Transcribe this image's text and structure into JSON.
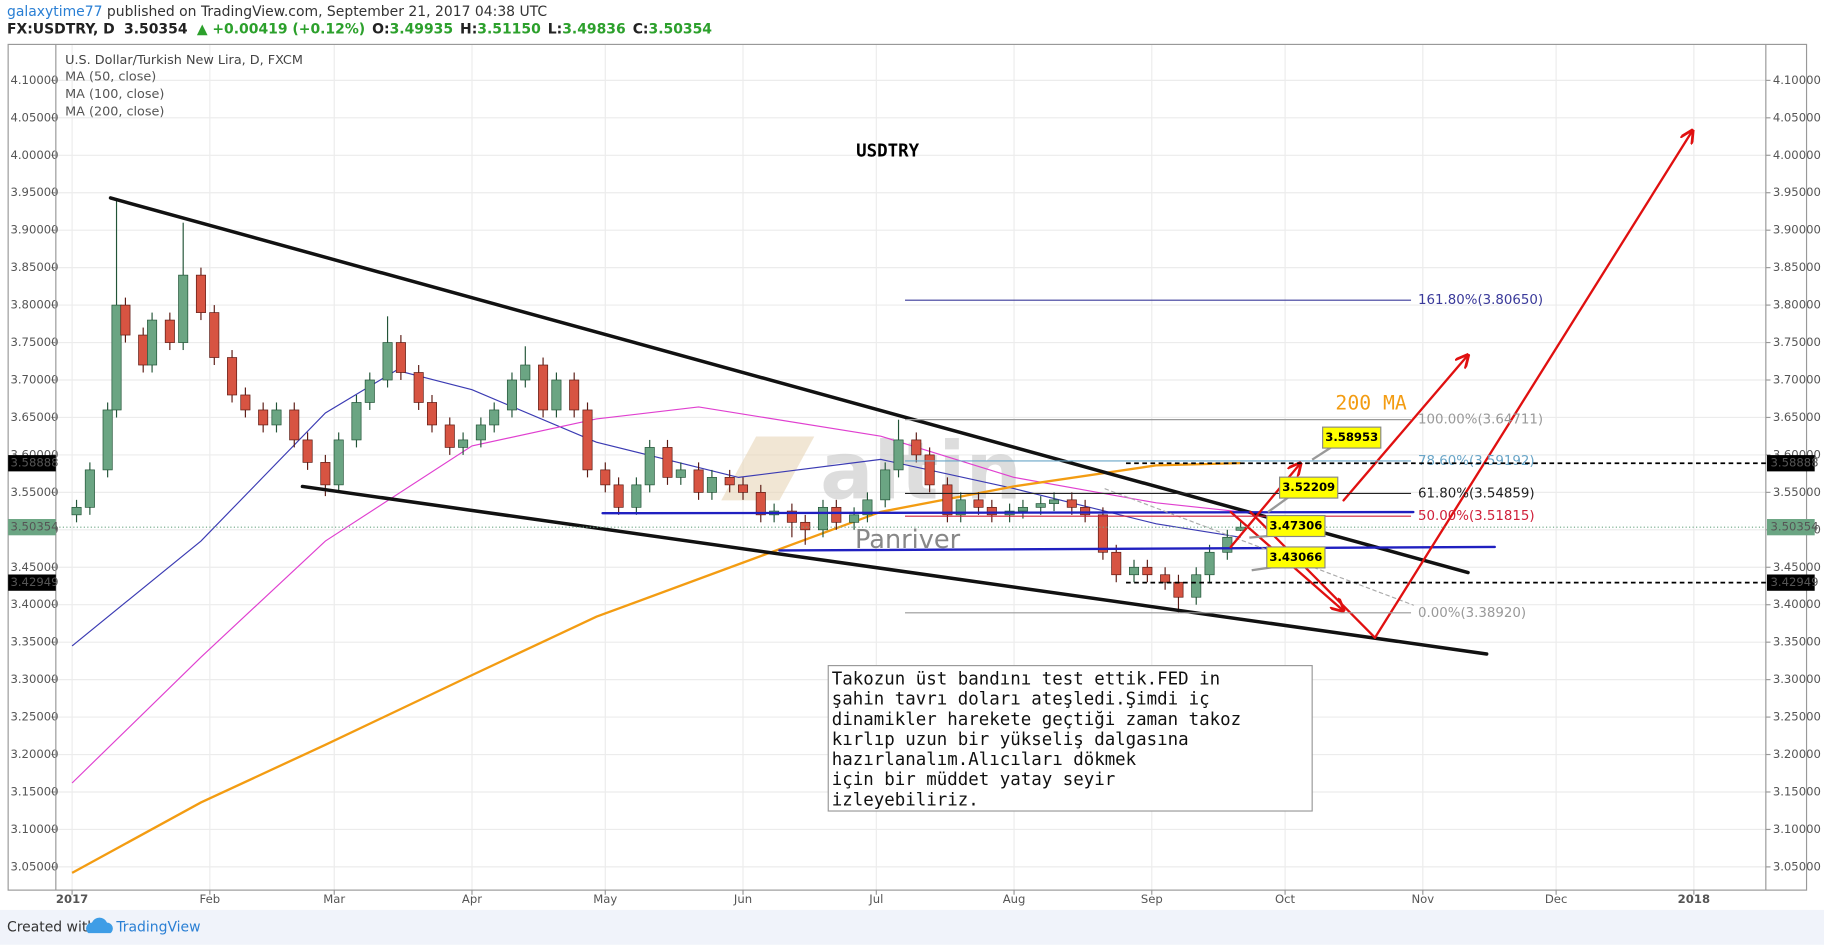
{
  "header": {
    "user": "galaxytime77",
    "published": " published on TradingView.com, September 21, 2017 04:38 UTC",
    "symbol": "FX:USDTRY, D",
    "price": "3.50354",
    "change": "▲ +0.00419 (+0.12%)",
    "ohlc": [
      {
        "label": "O:",
        "value": "3.49935"
      },
      {
        "label": "H:",
        "value": "3.51150"
      },
      {
        "label": "L:",
        "value": "3.49836"
      },
      {
        "label": "C:",
        "value": "3.50354"
      }
    ]
  },
  "chart_data": {
    "type": "candlestick",
    "title": "U.S. Dollar/Turkish New Lira, D, FXCM",
    "chart_label": "USDTRY",
    "ma_label": "200 MA",
    "up_color": "#6ba583",
    "down_color": "#d75442",
    "xlim": [
      -3.66,
      381.2
    ],
    "ylim": [
      3.019,
      4.148
    ],
    "grid": true,
    "xticks": [
      {
        "value": 0,
        "label": "2017"
      },
      {
        "value": 31,
        "label": "Feb"
      },
      {
        "value": 59,
        "label": "Mar"
      },
      {
        "value": 90,
        "label": "Apr"
      },
      {
        "value": 120,
        "label": "May"
      },
      {
        "value": 151,
        "label": "Jun"
      },
      {
        "value": 181,
        "label": "Jul"
      },
      {
        "value": 212,
        "label": "Aug"
      },
      {
        "value": 243,
        "label": "Sep"
      },
      {
        "value": 273,
        "label": "Oct"
      },
      {
        "value": 304,
        "label": "Nov"
      },
      {
        "value": 334,
        "label": "Dec"
      },
      {
        "value": 365,
        "label": "2018"
      }
    ],
    "yticks": [
      {
        "value": 3.05,
        "label": "3.05000"
      },
      {
        "value": 3.1,
        "label": "3.10000"
      },
      {
        "value": 3.15,
        "label": "3.15000"
      },
      {
        "value": 3.2,
        "label": "3.20000"
      },
      {
        "value": 3.25,
        "label": "3.25000"
      },
      {
        "value": 3.3,
        "label": "3.30000"
      },
      {
        "value": 3.35,
        "label": "3.35000"
      },
      {
        "value": 3.4,
        "label": "3.40000"
      },
      {
        "value": 3.45,
        "label": "3.45000"
      },
      {
        "value": 3.5,
        "label": "3.50000"
      },
      {
        "value": 3.55,
        "label": "3.55000"
      },
      {
        "value": 3.6,
        "label": "3.60000"
      },
      {
        "value": 3.65,
        "label": "3.65000"
      },
      {
        "value": 3.7,
        "label": "3.70000"
      },
      {
        "value": 3.75,
        "label": "3.75000"
      },
      {
        "value": 3.8,
        "label": "3.80000"
      },
      {
        "value": 3.85,
        "label": "3.85000"
      },
      {
        "value": 3.9,
        "label": "3.90000"
      },
      {
        "value": 3.95,
        "label": "3.95000"
      },
      {
        "value": 4.0,
        "label": "4.00000"
      },
      {
        "value": 4.05,
        "label": "4.05000"
      },
      {
        "value": 4.1,
        "label": "4.10000"
      }
    ],
    "x": [
      1,
      4,
      8,
      10,
      12,
      16,
      18,
      22,
      25,
      29,
      32,
      36,
      39,
      43,
      46,
      50,
      53,
      57,
      60,
      64,
      67,
      71,
      74,
      78,
      81,
      85,
      88,
      92,
      95,
      99,
      102,
      106,
      109,
      113,
      116,
      120,
      123,
      127,
      130,
      134,
      137,
      141,
      144,
      148,
      151,
      155,
      158,
      162,
      165,
      169,
      172,
      176,
      179,
      183,
      186,
      190,
      193,
      197,
      200,
      204,
      207,
      211,
      214,
      218,
      221,
      225,
      228,
      232,
      235,
      239,
      242,
      246,
      249,
      253,
      256,
      260,
      263
    ],
    "open": [
      3.52,
      3.53,
      3.58,
      3.66,
      3.8,
      3.76,
      3.72,
      3.78,
      3.75,
      3.84,
      3.79,
      3.73,
      3.68,
      3.66,
      3.64,
      3.66,
      3.62,
      3.59,
      3.56,
      3.62,
      3.67,
      3.7,
      3.75,
      3.71,
      3.67,
      3.64,
      3.61,
      3.62,
      3.64,
      3.66,
      3.7,
      3.72,
      3.66,
      3.7,
      3.66,
      3.58,
      3.56,
      3.53,
      3.56,
      3.61,
      3.57,
      3.58,
      3.55,
      3.57,
      3.56,
      3.55,
      3.52,
      3.525,
      3.51,
      3.5,
      3.53,
      3.51,
      3.52,
      3.54,
      3.58,
      3.62,
      3.6,
      3.56,
      3.52,
      3.54,
      3.53,
      3.52,
      3.525,
      3.53,
      3.535,
      3.54,
      3.53,
      3.52,
      3.47,
      3.44,
      3.45,
      3.44,
      3.43,
      3.41,
      3.44,
      3.47,
      3.49935
    ],
    "high": [
      3.54,
      3.59,
      3.67,
      3.94,
      3.81,
      3.77,
      3.79,
      3.79,
      3.91,
      3.85,
      3.8,
      3.74,
      3.69,
      3.67,
      3.67,
      3.67,
      3.63,
      3.6,
      3.63,
      3.68,
      3.71,
      3.785,
      3.76,
      3.72,
      3.68,
      3.65,
      3.63,
      3.65,
      3.67,
      3.71,
      3.745,
      3.73,
      3.71,
      3.71,
      3.67,
      3.59,
      3.57,
      3.57,
      3.62,
      3.62,
      3.59,
      3.59,
      3.58,
      3.58,
      3.57,
      3.56,
      3.535,
      3.535,
      3.52,
      3.54,
      3.54,
      3.53,
      3.55,
      3.59,
      3.647,
      3.63,
      3.61,
      3.57,
      3.55,
      3.55,
      3.54,
      3.535,
      3.54,
      3.545,
      3.55,
      3.55,
      3.54,
      3.53,
      3.48,
      3.46,
      3.46,
      3.45,
      3.44,
      3.45,
      3.48,
      3.5,
      3.5115
    ],
    "low": [
      3.51,
      3.52,
      3.57,
      3.65,
      3.75,
      3.71,
      3.71,
      3.74,
      3.74,
      3.78,
      3.72,
      3.67,
      3.65,
      3.63,
      3.63,
      3.61,
      3.58,
      3.545,
      3.55,
      3.61,
      3.66,
      3.69,
      3.7,
      3.66,
      3.63,
      3.6,
      3.6,
      3.61,
      3.63,
      3.65,
      3.69,
      3.65,
      3.65,
      3.65,
      3.57,
      3.55,
      3.52,
      3.52,
      3.55,
      3.56,
      3.56,
      3.54,
      3.54,
      3.55,
      3.54,
      3.51,
      3.51,
      3.49,
      3.48,
      3.49,
      3.5,
      3.5,
      3.51,
      3.53,
      3.57,
      3.59,
      3.55,
      3.51,
      3.51,
      3.52,
      3.51,
      3.51,
      3.515,
      3.52,
      3.525,
      3.52,
      3.51,
      3.46,
      3.43,
      3.43,
      3.43,
      3.42,
      3.389,
      3.4,
      3.43,
      3.46,
      3.49836
    ],
    "close": [
      3.53,
      3.58,
      3.66,
      3.8,
      3.76,
      3.72,
      3.78,
      3.75,
      3.84,
      3.79,
      3.73,
      3.68,
      3.66,
      3.64,
      3.66,
      3.62,
      3.59,
      3.56,
      3.62,
      3.67,
      3.7,
      3.75,
      3.71,
      3.67,
      3.64,
      3.61,
      3.62,
      3.64,
      3.66,
      3.7,
      3.72,
      3.66,
      3.7,
      3.66,
      3.58,
      3.56,
      3.53,
      3.56,
      3.61,
      3.57,
      3.58,
      3.55,
      3.57,
      3.56,
      3.55,
      3.52,
      3.525,
      3.51,
      3.5,
      3.53,
      3.51,
      3.52,
      3.54,
      3.58,
      3.62,
      3.6,
      3.56,
      3.52,
      3.54,
      3.53,
      3.52,
      3.525,
      3.53,
      3.535,
      3.54,
      3.53,
      3.52,
      3.47,
      3.44,
      3.45,
      3.44,
      3.43,
      3.41,
      3.44,
      3.47,
      3.49,
      3.50354
    ],
    "ma_series": [
      {
        "name": "MA (50, close)",
        "color": "#3b3bb3",
        "x": [
          0,
          29,
          57,
          73,
          90,
          118,
          150,
          182,
          212,
          244,
          263
        ],
        "values": [
          3.345,
          3.485,
          3.656,
          3.713,
          3.687,
          3.617,
          3.57,
          3.594,
          3.555,
          3.508,
          3.49
        ]
      },
      {
        "name": "MA (100, close)",
        "color": "#e040d0",
        "x": [
          0,
          29,
          57,
          90,
          118,
          141,
          182,
          212,
          244,
          263
        ],
        "values": [
          3.162,
          3.33,
          3.485,
          3.612,
          3.648,
          3.664,
          3.625,
          3.57,
          3.536,
          3.524
        ]
      },
      {
        "name": "MA (200, close)",
        "color": "#f39c12",
        "x": [
          0,
          29,
          57,
          90,
          118,
          150,
          182,
          212,
          244,
          263
        ],
        "values": [
          3.042,
          3.136,
          3.213,
          3.306,
          3.384,
          3.454,
          3.524,
          3.558,
          3.586,
          3.589
        ]
      }
    ],
    "fib_levels": [
      {
        "label": "161.80%(3.80650)",
        "value": 3.8065,
        "color": "#3a3a9a"
      },
      {
        "label": "100.00%(3.64711)",
        "value": 3.64711,
        "color": "#999999"
      },
      {
        "label": "78.60%(3.59192)",
        "value": 3.59192,
        "color": "#6aa6c8"
      },
      {
        "label": "61.80%(3.54859)",
        "value": 3.54859,
        "color": "#222222"
      },
      {
        "label": "50.00%(3.51815)",
        "value": 3.51815,
        "color": "#d0203a"
      },
      {
        "label": "0.00%(3.38920)",
        "value": 3.3892,
        "color": "#999999"
      }
    ],
    "price_lines": [
      3.58888,
      3.42949
    ],
    "callouts": [
      3.58953,
      3.52209,
      3.47306,
      3.43066
    ],
    "note": [
      "Takozun üst bandını test ettik.FED in",
      "şahin tavrı doları ateşledi.Şimdi iç",
      "dinamikler harekete geçtiği zaman takoz",
      "kırlıp uzun bir yükseliş dalgasına",
      "hazırlanalım.Alıcıları dökmek",
      "için bir müddet yatay seyir",
      "izleyebiliriz."
    ],
    "watermarks": {
      "logo": "altin",
      "sub": "Panriver"
    }
  },
  "footer": {
    "created": "Created with",
    "brand": "TradingView"
  }
}
